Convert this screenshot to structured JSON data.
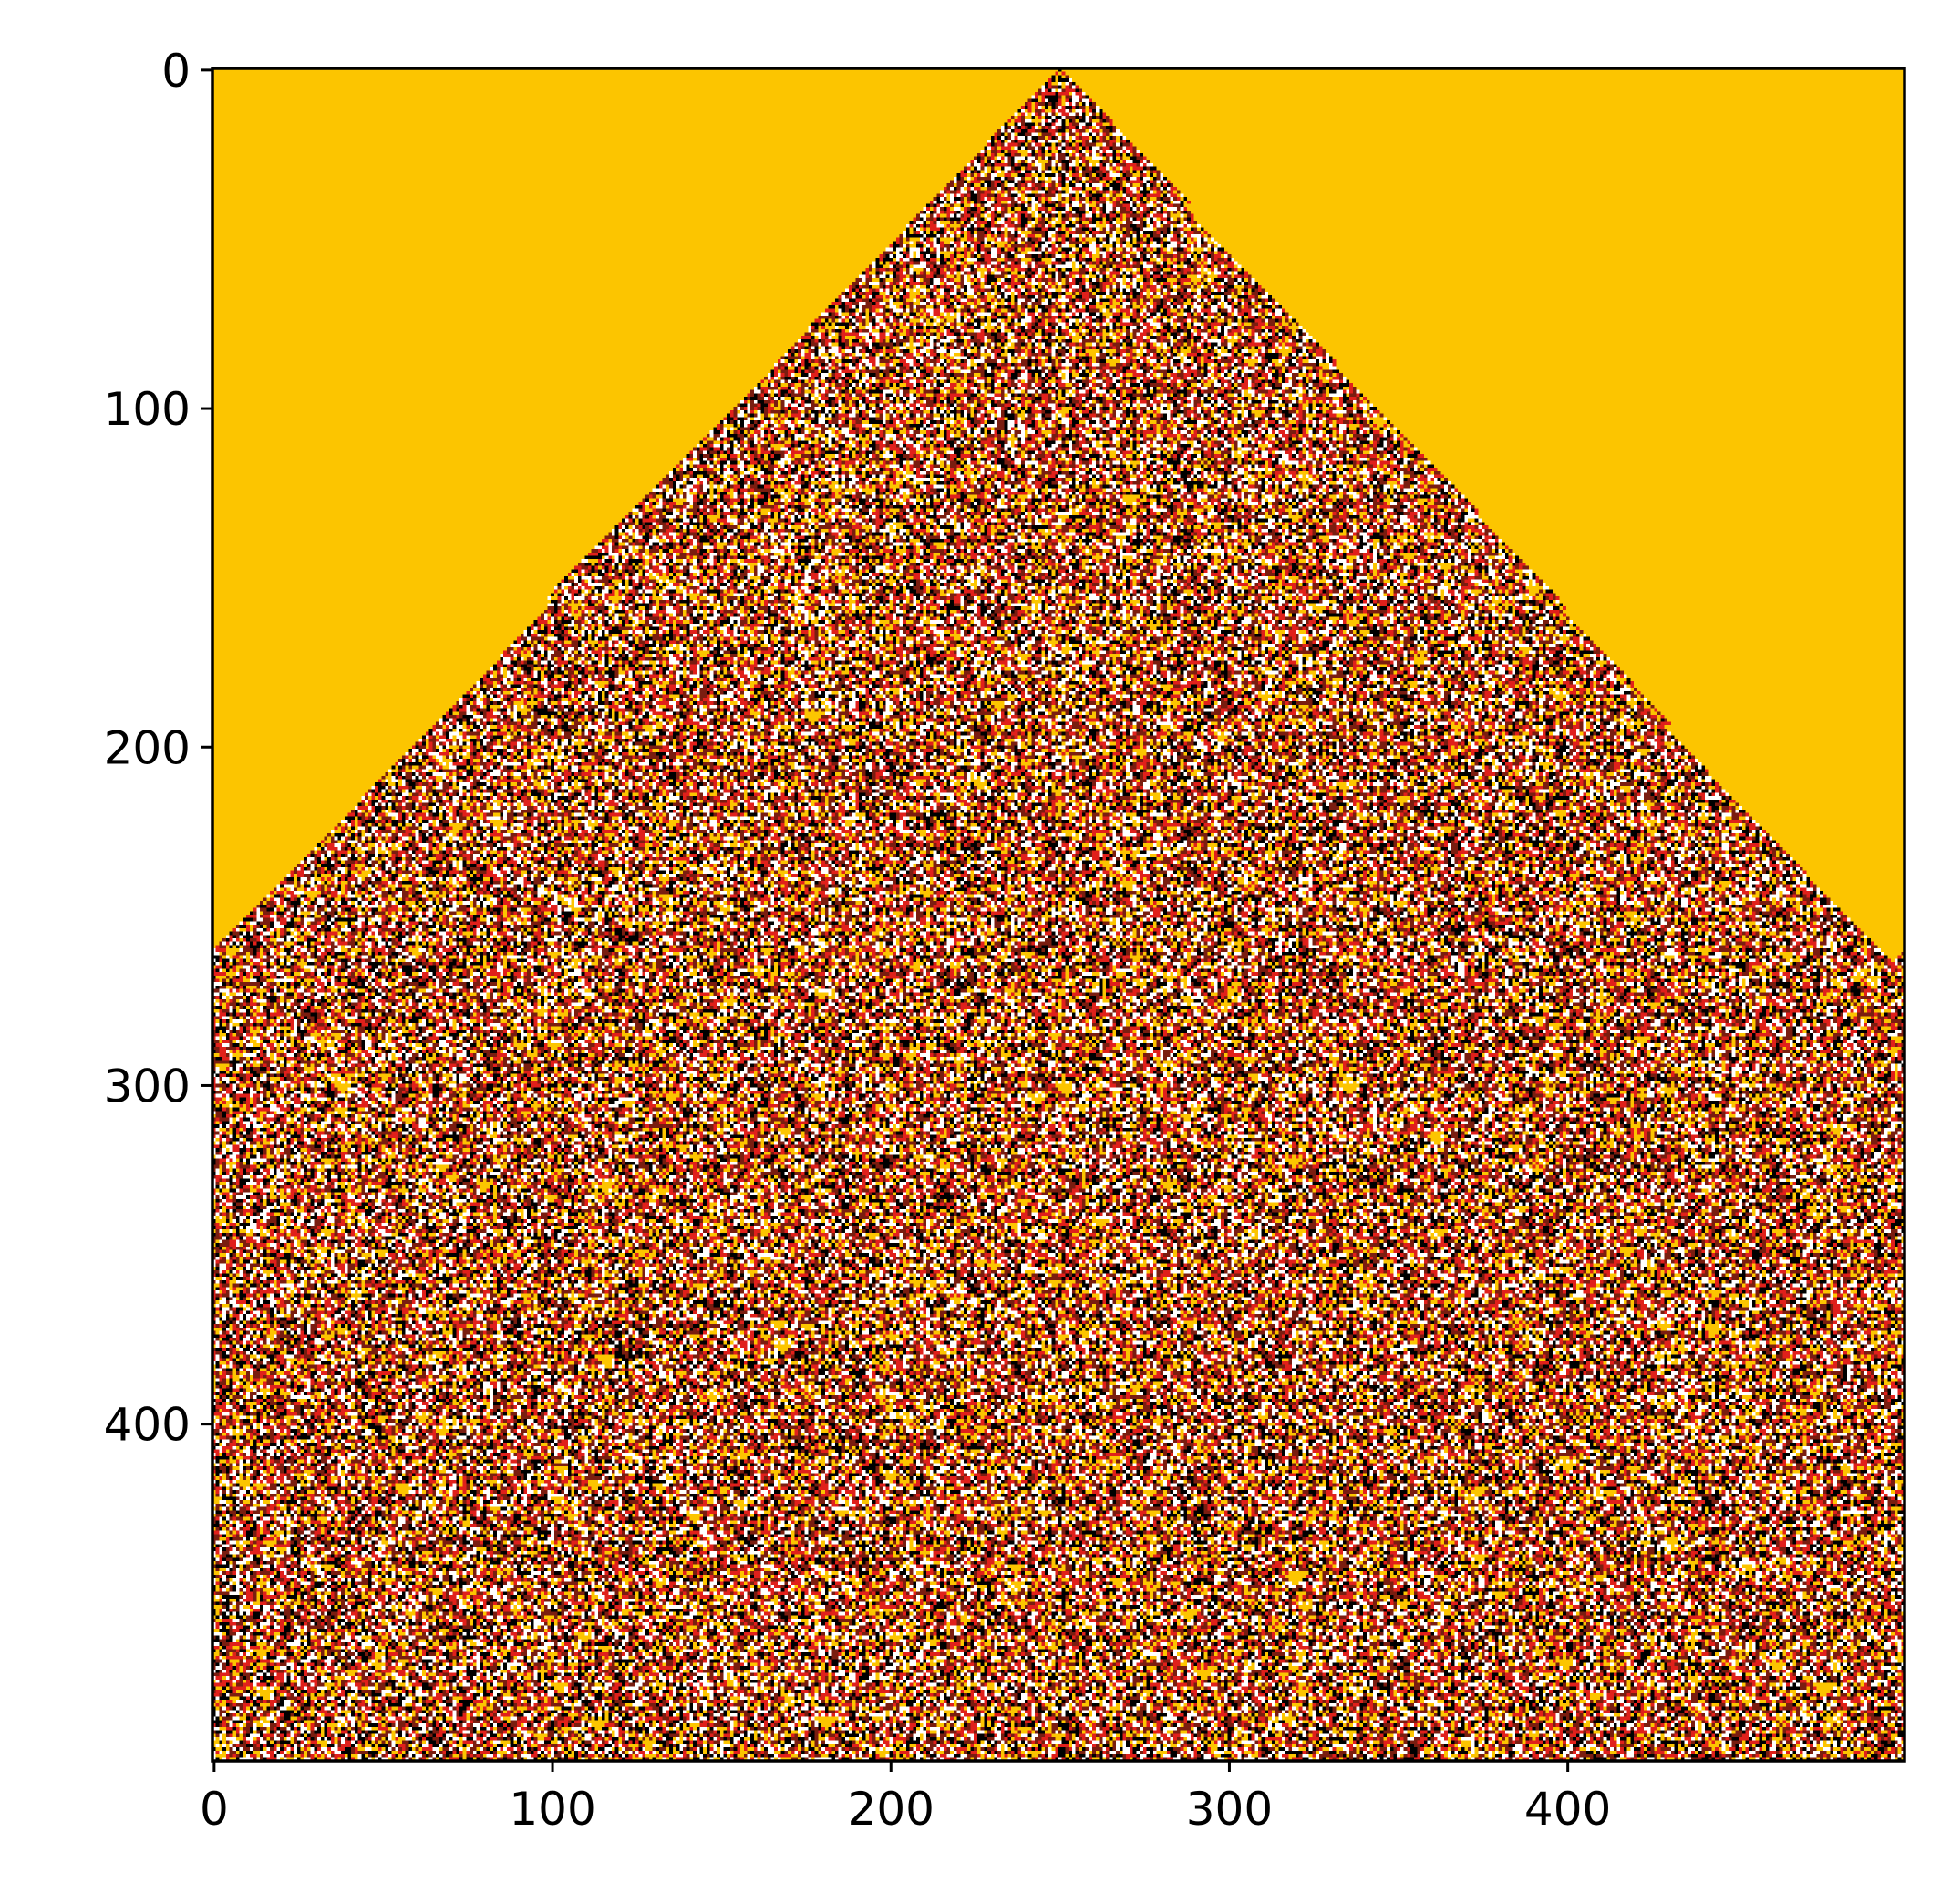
{
  "chart_data": {
    "type": "heatmap",
    "description_kind": "cellular-automaton-image",
    "title": "",
    "xlabel": "",
    "ylabel": "",
    "xlim": [
      0,
      499
    ],
    "ylim": [
      499,
      0
    ],
    "x_ticks": [
      0,
      100,
      200,
      300,
      400
    ],
    "y_ticks": [
      0,
      100,
      200,
      300,
      400
    ],
    "grid": false,
    "legend": "none",
    "width_cells": 500,
    "height_cells": 500,
    "seed_column": 250,
    "seed_row": 0,
    "left_edge_slope": 1.55,
    "right_edge_slope": 1.0,
    "colors": {
      "background": "#fcc500",
      "black": "#000000",
      "white": "#ffffff",
      "red": "#e0201b",
      "dark_red": "#7a1d10"
    }
  }
}
